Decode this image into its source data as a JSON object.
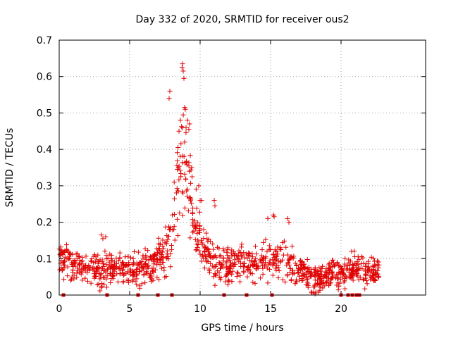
{
  "chart_data": {
    "type": "scatter",
    "title": "Day 332 of 2020, SRMTID for receiver ous2",
    "xlabel": "GPS time / hours",
    "ylabel": "SRMTID / TECUs",
    "xlim": [
      0,
      26
    ],
    "ylim": [
      0,
      0.7
    ],
    "x_ticks": [
      0,
      5,
      10,
      15,
      20
    ],
    "x_tick_labels": [
      "0",
      "5",
      "10",
      "15",
      "20"
    ],
    "y_ticks": [
      0,
      0.1,
      0.2,
      0.3,
      0.4,
      0.5,
      0.6,
      0.7
    ],
    "y_tick_labels": [
      "0",
      "0.1",
      "0.2",
      "0.3",
      "0.4",
      "0.5",
      "0.6",
      "0.7"
    ],
    "grid": true,
    "series": [
      {
        "name": "SRMTID",
        "marker": "plus",
        "color": "#e00000",
        "profile": [
          [
            0.0,
            0.1
          ],
          [
            0.5,
            0.09
          ],
          [
            1.0,
            0.08
          ],
          [
            2.0,
            0.075
          ],
          [
            2.6,
            0.085
          ],
          [
            3.0,
            0.065
          ],
          [
            3.5,
            0.07
          ],
          [
            4.0,
            0.08
          ],
          [
            4.5,
            0.075
          ],
          [
            5.0,
            0.07
          ],
          [
            5.5,
            0.07
          ],
          [
            6.0,
            0.08
          ],
          [
            6.5,
            0.075
          ],
          [
            7.0,
            0.1
          ],
          [
            7.5,
            0.12
          ],
          [
            7.9,
            0.16
          ],
          [
            8.2,
            0.24
          ],
          [
            8.5,
            0.32
          ],
          [
            8.7,
            0.38
          ],
          [
            9.0,
            0.32
          ],
          [
            9.3,
            0.26
          ],
          [
            9.6,
            0.2
          ],
          [
            10.0,
            0.14
          ],
          [
            10.5,
            0.11
          ],
          [
            11.0,
            0.09
          ],
          [
            12.0,
            0.08
          ],
          [
            13.0,
            0.09
          ],
          [
            14.0,
            0.08
          ],
          [
            14.5,
            0.1
          ],
          [
            15.2,
            0.1
          ],
          [
            16.0,
            0.09
          ],
          [
            16.5,
            0.08
          ],
          [
            17.5,
            0.055
          ],
          [
            18.5,
            0.05
          ],
          [
            19.5,
            0.055
          ],
          [
            20.0,
            0.05
          ],
          [
            20.5,
            0.07
          ],
          [
            21.0,
            0.08
          ],
          [
            22.0,
            0.065
          ],
          [
            22.7,
            0.06
          ]
        ],
        "spread": [
          [
            0.0,
            0.045
          ],
          [
            7.0,
            0.05
          ],
          [
            8.0,
            0.1
          ],
          [
            8.7,
            0.17
          ],
          [
            9.5,
            0.1
          ],
          [
            10.5,
            0.06
          ],
          [
            14.0,
            0.055
          ],
          [
            16.5,
            0.05
          ],
          [
            22.7,
            0.04
          ]
        ],
        "peaks": [
          [
            8.75,
            0.635
          ],
          [
            8.72,
            0.625
          ],
          [
            8.8,
            0.615
          ],
          [
            8.85,
            0.595
          ],
          [
            8.9,
            0.515
          ],
          [
            8.95,
            0.51
          ],
          [
            8.6,
            0.48
          ],
          [
            9.1,
            0.48
          ],
          [
            9.2,
            0.455
          ],
          [
            9.25,
            0.47
          ],
          [
            8.5,
            0.45
          ],
          [
            7.8,
            0.54
          ],
          [
            7.85,
            0.56
          ],
          [
            9.0,
            0.46
          ],
          [
            8.9,
            0.42
          ],
          [
            9.4,
            0.35
          ],
          [
            9.9,
            0.3
          ],
          [
            10.0,
            0.26
          ],
          [
            10.1,
            0.26
          ],
          [
            11.0,
            0.26
          ],
          [
            11.05,
            0.245
          ],
          [
            3.0,
            0.165
          ],
          [
            3.1,
            0.155
          ],
          [
            3.3,
            0.16
          ],
          [
            15.2,
            0.22
          ],
          [
            15.25,
            0.215
          ],
          [
            16.2,
            0.21
          ],
          [
            16.3,
            0.2
          ],
          [
            14.8,
            0.21
          ]
        ],
        "data_gaps_at": [
          0.3,
          3.4,
          5.6,
          7.0,
          8.0,
          11.7,
          13.3,
          15.1,
          20.0,
          20.5,
          20.8,
          21.1,
          21.3
        ]
      }
    ]
  }
}
